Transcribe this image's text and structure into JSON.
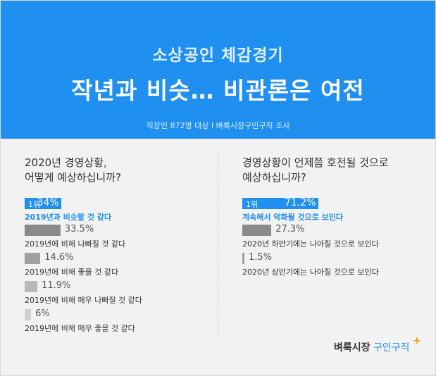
{
  "header": {
    "subtitle": "소상공인 체감경기",
    "title": "작년과 비슷…  비관론은 여전",
    "meta": "직장인 872명 대상  I  벼룩시장구인구직 조사"
  },
  "logo": {
    "part1": "벼룩시장",
    "part2": "구인구직",
    "plus": "+"
  },
  "colors": {
    "header": "#1f8ff0",
    "highlight": "#1f8ff0",
    "bars": [
      "#8a8a8a",
      "#a0a0a0",
      "#b8b8b8",
      "#cfcfcf"
    ]
  },
  "chart_data": [
    {
      "type": "bar",
      "orientation": "horizontal",
      "title": "2020년 경영상황,\n어떻게 예상하십니까?",
      "rank_label": "1위",
      "categories": [
        "2019년과 비슷할 것 같다",
        "2019년에 비해 나빠질 것 같다",
        "2019년에 비해 좋을 것 같다",
        "2019년에 비해 매우 나빠질 것 같다",
        "2019년에 비해 매우 좋을 것 같다"
      ],
      "values": [
        34,
        33.5,
        14.6,
        11.9,
        6
      ],
      "value_labels": [
        "34%",
        "33.5%",
        "14.6%",
        "11.9%",
        "6%"
      ]
    },
    {
      "type": "bar",
      "orientation": "horizontal",
      "title": "경영상황이 언제쯤 호전될 것으로\n예상하십니까?",
      "rank_label": "1위",
      "categories": [
        "계속해서 악화될 것으로 보인다",
        "2020년 하반기에는 나아질 것으로 보인다",
        "2020년 상반기에는 나아질 것으로 보인다"
      ],
      "values": [
        71.2,
        27.3,
        1.5
      ],
      "value_labels": [
        "71.2%",
        "27.3%",
        "1.5%"
      ]
    }
  ]
}
